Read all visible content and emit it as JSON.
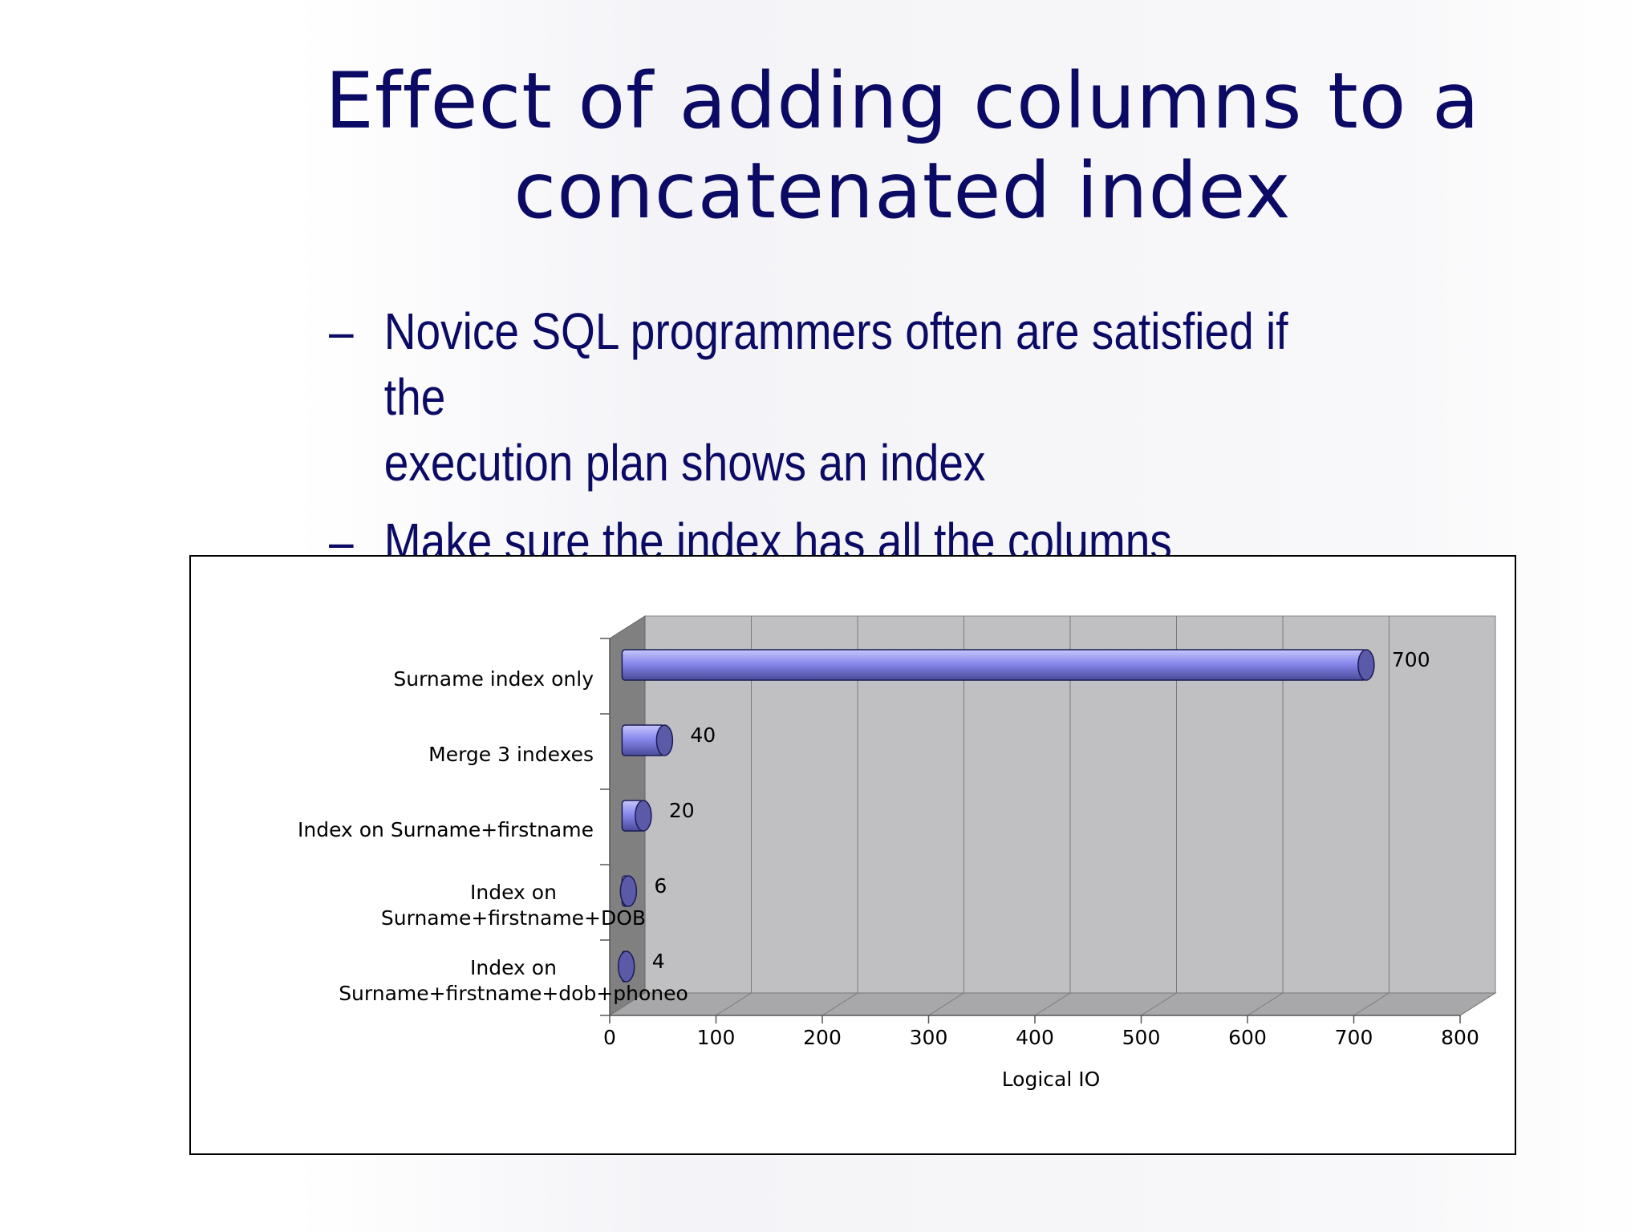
{
  "slide": {
    "title_line1": "Effect of adding columns to a",
    "title_line2": "concatenated index",
    "bullets": [
      {
        "dash": "–",
        "text_line1": "Novice SQL programmers often are satisfied if the",
        "text_line2": "execution plan shows an index"
      },
      {
        "dash": "–",
        "text_line1": "Make sure the index has all the columns required"
      }
    ]
  },
  "chart_data": {
    "type": "bar",
    "orientation": "horizontal",
    "style": "3d-cylinder",
    "categories": [
      [
        "Surname index only"
      ],
      [
        "Merge 3 indexes"
      ],
      [
        "Index on Surname+firstname"
      ],
      [
        "Index on",
        "Surname+firstname+DOB"
      ],
      [
        "Index on",
        "Surname+firstname+dob+phoneo"
      ]
    ],
    "values": [
      700,
      40,
      20,
      6,
      4
    ],
    "data_labels": [
      "700",
      "40",
      "20",
      "6",
      "4"
    ],
    "xlabel": "Logical IO",
    "xlim": [
      0,
      800
    ],
    "xticks": [
      0,
      100,
      200,
      300,
      400,
      500,
      600,
      700,
      800
    ],
    "grid": true,
    "legend": "none",
    "colors": {
      "bar_fill": "#8888ee",
      "bar_light": "#c6c6fb",
      "bar_dark": "#4a4a99",
      "bar_cap": "#5a5aa8",
      "wall": "#c0c0c2",
      "side_wall": "#808080",
      "floor": "#a8a8aa"
    }
  }
}
